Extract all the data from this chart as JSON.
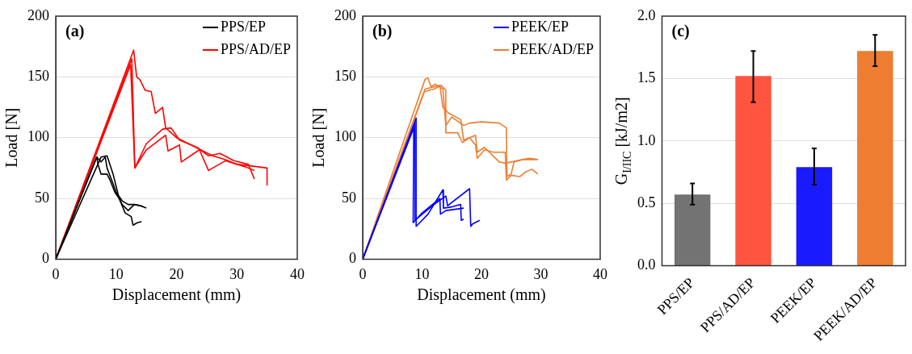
{
  "chart_data": [
    {
      "type": "line",
      "annotations": [
        "(a)"
      ],
      "xlabel": "Displacement (mm)",
      "ylabel": "Load [N]",
      "xlim": [
        0,
        40
      ],
      "xticks": [
        0,
        10,
        20,
        30,
        40
      ],
      "ylim": [
        0,
        200
      ],
      "yticks": [
        0,
        50,
        100,
        150,
        200
      ],
      "grid": "y",
      "legend": "top right",
      "series": [
        {
          "name": "PPS/EP",
          "color": "#000000",
          "x": [
            0,
            6.8,
            7.5,
            8.2,
            8.5,
            9.5,
            10,
            11,
            12,
            13,
            14,
            15
          ],
          "values": [
            0,
            84,
            80,
            84,
            75,
            62,
            55,
            48,
            45,
            45,
            44,
            42
          ]
        },
        {
          "color": "#000000",
          "x": [
            0,
            6.8,
            7,
            7.5,
            8.5,
            9,
            9.8,
            10.5,
            11,
            12,
            13,
            14,
            14.5
          ],
          "values": [
            0,
            84,
            78,
            70,
            70,
            65,
            55,
            50,
            45,
            40,
            45,
            44,
            43
          ]
        },
        {
          "color": "#000000",
          "x": [
            0,
            7.5,
            8.5,
            9.5,
            10.5,
            11.5,
            12.5,
            12.8,
            13.5,
            14.2
          ],
          "values": [
            0,
            84,
            85,
            70,
            50,
            38,
            35,
            28,
            30,
            31
          ]
        },
        {
          "name": "PPS/AD/EP",
          "color": "#ff0000",
          "x": [
            0,
            12.9,
            13.4,
            13.9,
            14.8,
            15.8,
            16.5,
            17.7,
            18.2,
            20,
            22,
            24,
            26,
            28,
            30,
            32,
            35,
            35
          ],
          "values": [
            0,
            172,
            150,
            148,
            139,
            138,
            120,
            125,
            108,
            100,
            95,
            90,
            85,
            82,
            78,
            77,
            75,
            61
          ]
        },
        {
          "color": "#ff0000",
          "x": [
            0,
            12.6,
            13.1,
            15,
            17.7,
            19.1,
            20.5,
            23.4,
            25.3,
            27.2,
            29.5,
            31.9,
            32.9
          ],
          "values": [
            0,
            165,
            75,
            95,
            107,
            108,
            98,
            92,
            85,
            87,
            81,
            78,
            66
          ]
        },
        {
          "color": "#ff0000",
          "x": [
            0,
            12.4,
            13.1,
            15,
            18.2,
            18.6,
            20.5,
            20.8,
            23.8,
            25.3,
            28.1,
            31.4,
            32.9
          ],
          "values": [
            0,
            160,
            75,
            90,
            102,
            89,
            94,
            80,
            90,
            73,
            81,
            76,
            73
          ]
        }
      ]
    },
    {
      "type": "line",
      "annotations": [
        "(b)"
      ],
      "xlabel": "Displacement (mm)",
      "ylabel": "Load [N]",
      "xlim": [
        0,
        40
      ],
      "xticks": [
        0,
        10,
        20,
        30,
        40
      ],
      "ylim": [
        0,
        200
      ],
      "yticks": [
        0,
        50,
        100,
        150,
        200
      ],
      "grid": "y",
      "legend": "top right",
      "series": [
        {
          "name": "PEEK/EP",
          "color": "#0000ff",
          "x": [
            0,
            8.6,
            8.5,
            10,
            13,
            13.1,
            14,
            17
          ],
          "values": [
            0,
            108,
            30,
            38,
            50,
            37,
            40,
            42
          ]
        },
        {
          "color": "#0000ff",
          "x": [
            0,
            9,
            9,
            11,
            13.5,
            13.6,
            15,
            16.5,
            16.6,
            17
          ],
          "values": [
            0,
            116,
            27,
            37,
            57,
            42,
            43,
            45,
            32,
            33
          ]
        },
        {
          "color": "#0000ff",
          "x": [
            0,
            8.8,
            8.8,
            12,
            14,
            14.3,
            18,
            18.2,
            18.5,
            19.7
          ],
          "values": [
            0,
            112,
            32,
            45,
            52,
            44,
            58,
            27,
            29,
            32
          ]
        },
        {
          "name": "PEEK/AD/EP",
          "color": "#ed7d31",
          "x": [
            0,
            10.5,
            11,
            11.5,
            12.2,
            13.5,
            14,
            15,
            17,
            18,
            20,
            23,
            24.2,
            24.3,
            25,
            25.5,
            27,
            29.5
          ],
          "values": [
            0,
            148,
            149,
            142,
            144,
            140,
            110,
            117,
            110,
            112,
            113,
            112,
            108,
            68,
            70,
            80,
            82,
            82
          ]
        },
        {
          "color": "#ed7d31",
          "x": [
            0,
            10.4,
            12,
            13.2,
            14,
            14,
            16,
            16.8,
            18,
            19,
            19.3,
            20.5,
            22,
            24,
            24.2,
            25,
            26.5,
            27.5,
            28.5,
            29.5
          ],
          "values": [
            0,
            138,
            140,
            143,
            139,
            104,
            104,
            96,
            100,
            94,
            83,
            90,
            88,
            88,
            65,
            69,
            68,
            72,
            74,
            70
          ]
        },
        {
          "color": "#ed7d31",
          "x": [
            0,
            10.5,
            13,
            13.5,
            14.5,
            16.5,
            17,
            19,
            19.3,
            20.5,
            23,
            24,
            28,
            29.5
          ],
          "values": [
            0,
            140,
            143,
            125,
            120,
            115,
            98,
            102,
            88,
            92,
            80,
            79,
            83,
            82
          ]
        }
      ]
    },
    {
      "type": "bar",
      "annotations": [
        "(c)"
      ],
      "ylabel": "G$_{I/IIC}$ [kJ/m2]",
      "categories": [
        "PPS/EP",
        "PPS/AD/EP",
        "PEEK/EP",
        "PEEK/AD/EP"
      ],
      "values": [
        0.57,
        1.52,
        0.79,
        1.72
      ],
      "colors": [
        "#737373",
        "#ff5540",
        "#1a1aff",
        "#ed7d31"
      ],
      "errors": [
        [
          0.49,
          0.66
        ],
        [
          1.31,
          1.72
        ],
        [
          0.65,
          0.94
        ],
        [
          1.6,
          1.85
        ]
      ],
      "ylim": [
        0,
        2
      ],
      "yticks": [
        {
          "value": 0,
          "label": "0.0"
        },
        {
          "value": 0.5,
          "label": "0.5"
        },
        {
          "value": 1,
          "label": "1.0"
        },
        {
          "value": 1.5,
          "label": "1.5"
        },
        {
          "value": 2,
          "label": "2.0"
        }
      ],
      "grid": "y"
    }
  ]
}
